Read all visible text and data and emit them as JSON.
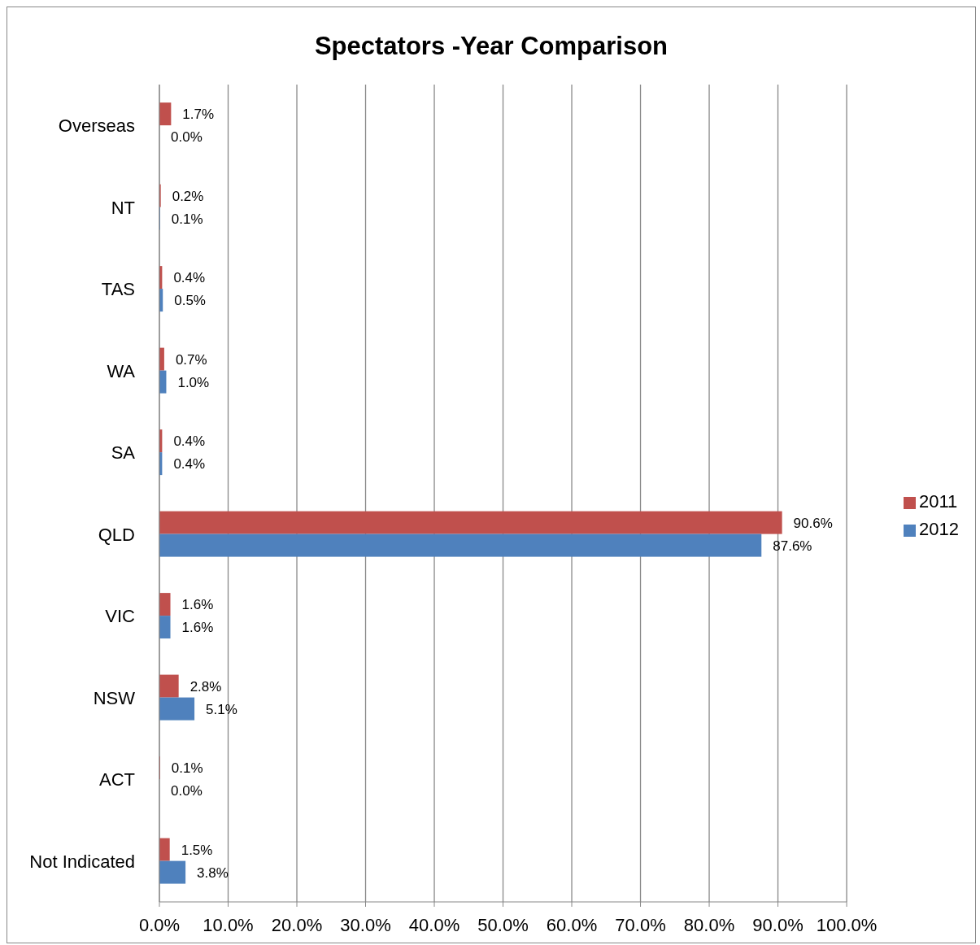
{
  "chart_data": {
    "type": "bar",
    "orientation": "horizontal",
    "title": "Spectators -Year Comparison",
    "categories": [
      "Overseas",
      "NT",
      "TAS",
      "WA",
      "SA",
      "QLD",
      "VIC",
      "NSW",
      "ACT",
      "Not Indicated"
    ],
    "series": [
      {
        "name": "2011",
        "color": "#c0504d",
        "values": [
          1.7,
          0.2,
          0.4,
          0.7,
          0.4,
          90.6,
          1.6,
          2.8,
          0.1,
          1.5
        ],
        "value_labels": [
          "1.7%",
          "0.2%",
          "0.4%",
          "0.7%",
          "0.4%",
          "90.6%",
          "1.6%",
          "2.8%",
          "0.1%",
          "1.5%"
        ]
      },
      {
        "name": "2012",
        "color": "#4f81bd",
        "values": [
          0.0,
          0.1,
          0.5,
          1.0,
          0.4,
          87.6,
          1.6,
          5.1,
          0.0,
          3.8
        ],
        "value_labels": [
          "0.0%",
          "0.1%",
          "0.5%",
          "1.0%",
          "0.4%",
          "87.6%",
          "1.6%",
          "5.1%",
          "0.0%",
          "3.8%"
        ]
      }
    ],
    "xlim": [
      0,
      100
    ],
    "xticks": [
      {
        "value": 0,
        "label": "0.0%"
      },
      {
        "value": 10,
        "label": "10.0%"
      },
      {
        "value": 20,
        "label": "20.0%"
      },
      {
        "value": 30,
        "label": "30.0%"
      },
      {
        "value": 40,
        "label": "40.0%"
      },
      {
        "value": 50,
        "label": "50.0%"
      },
      {
        "value": 60,
        "label": "60.0%"
      },
      {
        "value": 70,
        "label": "70.0%"
      },
      {
        "value": 80,
        "label": "80.0%"
      },
      {
        "value": 90,
        "label": "90.0%"
      },
      {
        "value": 100,
        "label": "100.0%"
      }
    ],
    "grid": "x",
    "legend": "right"
  }
}
